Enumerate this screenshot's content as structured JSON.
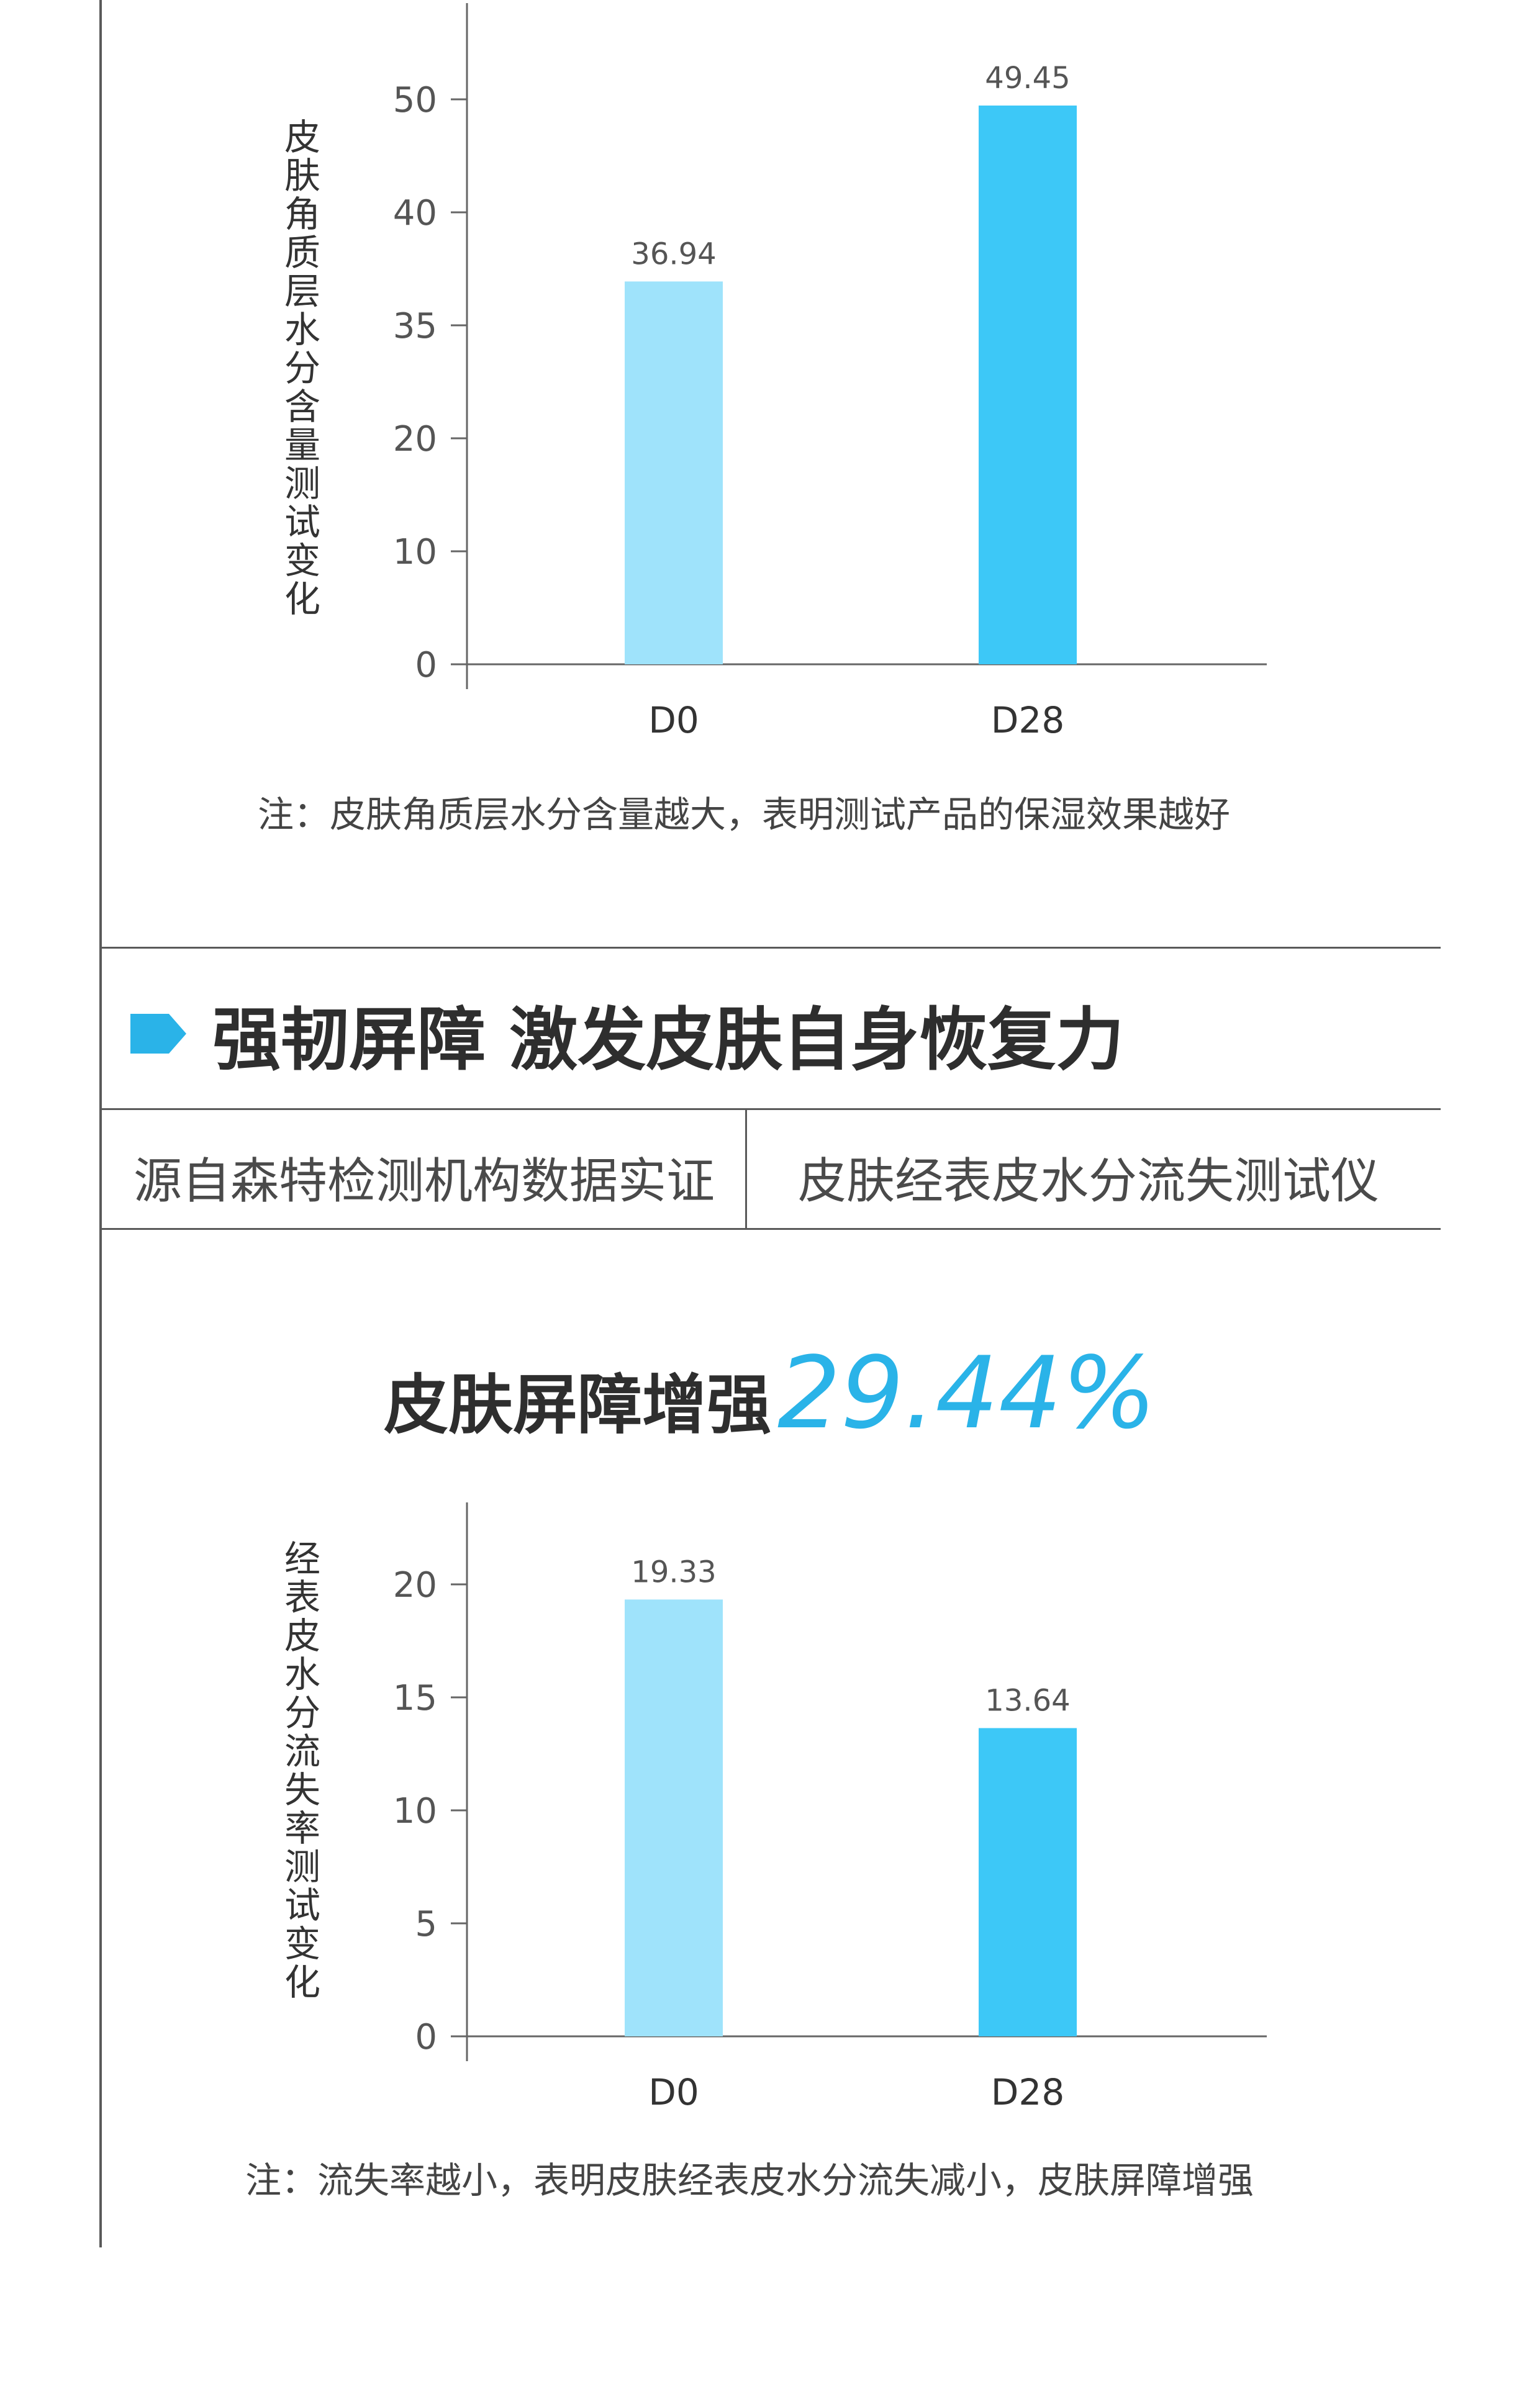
{
  "chart_data": [
    {
      "type": "bar",
      "categories": [
        "D0",
        "D28"
      ],
      "values": [
        36.94,
        49.45
      ],
      "data_labels": [
        "36.94",
        "49.45"
      ],
      "ytick_labels": [
        "0",
        "10",
        "20",
        "35",
        "40",
        "50"
      ],
      "ylabel": "皮肤角质层水分含量测试变化",
      "xlabel": "",
      "title": "",
      "grid": false,
      "colors": [
        "#9fe3fb",
        "#3dc8f7"
      ]
    },
    {
      "type": "bar",
      "categories": [
        "D0",
        "D28"
      ],
      "values": [
        19.33,
        13.64
      ],
      "data_labels": [
        "19.33",
        "13.64"
      ],
      "ytick_labels": [
        "0",
        "5",
        "10",
        "15",
        "20"
      ],
      "ylabel": "经表皮水分流失率测试变化",
      "xlabel": "",
      "title": "",
      "grid": false,
      "colors": [
        "#9fe3fb",
        "#3dc8f7"
      ]
    }
  ],
  "notes": {
    "chart1": "注：皮肤角质层水分含量越大，表明测试产品的保湿效果越好",
    "chart2": "注：流失率越小，表明皮肤经表皮水分流失减小，皮肤屏障增强"
  },
  "section": {
    "title": "强韧屏障 激发皮肤自身恢复力",
    "icon": "arrow-tag-icon",
    "accent_color": "#2ab3e8",
    "sub_left": "源自森特检测机构数据实证",
    "sub_right": "皮肤经表皮水分流失测试仪"
  },
  "highlight": {
    "text": "皮肤屏障增强",
    "number": "29.44%"
  }
}
